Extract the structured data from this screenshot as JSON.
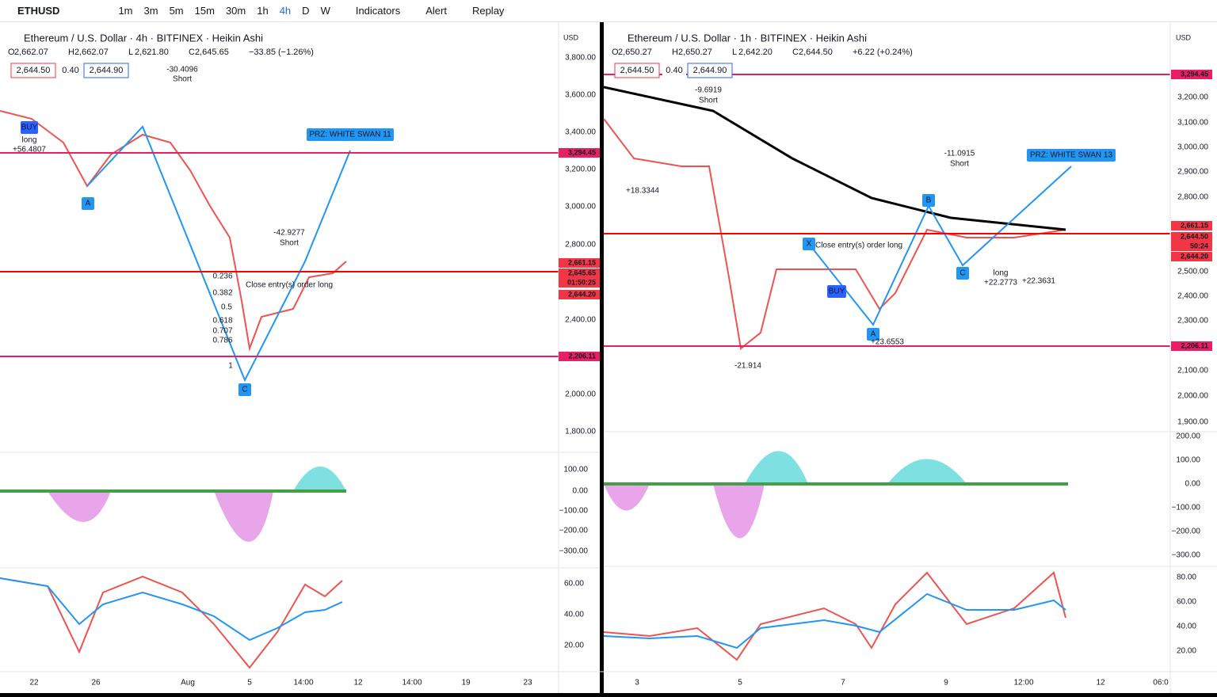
{
  "toolbar": {
    "symbol": "ETHUSD",
    "intervals": [
      "1m",
      "3m",
      "5m",
      "15m",
      "30m",
      "1h",
      "4h",
      "D",
      "W"
    ],
    "active_interval": "4h",
    "buttons": [
      "Indicators",
      "Alert",
      "Replay"
    ]
  },
  "panes": [
    {
      "title": "Ethereum / U.S. Dollar · 4h · BITFINEX · Heikin Ashi",
      "ohlc": [
        {
          "label": "O",
          "value": "2,662.07"
        },
        {
          "label": "H",
          "value": "2,662.07"
        },
        {
          "label": "L",
          "value": "2,621.80"
        },
        {
          "label": "C",
          "value": "2,645.65"
        }
      ],
      "change": "−33.85 (−1.26%)",
      "quote": [
        "2,644.50",
        "0.40",
        "2,644.90"
      ],
      "currency": "USD",
      "price_axis": [
        "3,800.00",
        "3,600.00",
        "3,400.00",
        "3,200.00",
        "3,000.00",
        "2,800.00",
        "2,400.00",
        "2,000.00",
        "1,800.00"
      ],
      "badges": [
        "3,294.45",
        "2,661.15",
        "2,645.65",
        "01:50:25",
        "2,644.20",
        "2,206.11"
      ],
      "oscillator_axis": [
        "100.00",
        "0.00",
        "−100.00",
        "−200.00",
        "−300.00"
      ],
      "rsi_axis": [
        "60.00",
        "40.00",
        "20.00"
      ],
      "time_axis": [
        "22",
        "26",
        "Aug",
        "5",
        "14:00",
        "12",
        "14:00",
        "19",
        "23"
      ],
      "annotations": [
        "PRZ: WHITE SWAN 11",
        "A",
        "C",
        "-42.9277",
        "Short",
        "Close entry(s) order long",
        "0.236",
        "0.382",
        "0.5",
        "0.618",
        "0.707",
        "0.786",
        "1",
        "BUY",
        "long",
        "+56.4807",
        "-30.4096",
        "Short"
      ]
    },
    {
      "title": "Ethereum / U.S. Dollar · 1h · BITFINEX · Heikin Ashi",
      "ohlc": [
        {
          "label": "O",
          "value": "2,650.27"
        },
        {
          "label": "H",
          "value": "2,650.27"
        },
        {
          "label": "L",
          "value": "2,642.20"
        },
        {
          "label": "C",
          "value": "2,644.50"
        }
      ],
      "change": "+6.22 (+0.24%)",
      "quote": [
        "2,644.50",
        "0.40",
        "2,644.90"
      ],
      "currency": "USD",
      "price_axis": [
        "3,200.00",
        "3,100.00",
        "3,000.00",
        "2,900.00",
        "2,800.00",
        "2,500.00",
        "2,400.00",
        "2,300.00",
        "2,100.00",
        "2,000.00",
        "1,900.00"
      ],
      "badges": [
        "3,294.45",
        "2,661.15",
        "2,644.50",
        "50:24",
        "2,644.20",
        "2,206.11"
      ],
      "oscillator_axis": [
        "200.00",
        "100.00",
        "0.00",
        "−100.00",
        "−200.00",
        "−300.00"
      ],
      "rsi_axis": [
        "80.00",
        "60.00",
        "40.00",
        "20.00"
      ],
      "time_axis": [
        "3",
        "5",
        "7",
        "9",
        "12:00",
        "12",
        "06:0"
      ],
      "annotations": [
        "PRZ: WHITE SWAN 13",
        "X",
        "A",
        "B",
        "C",
        "BUY",
        "-9.6919",
        "Short",
        "-11.0915",
        "Short",
        "Close entry(s) order long",
        "long",
        "+22.2773",
        "+22.3631",
        "-21.914",
        "+23.6553",
        "+18.3344"
      ]
    }
  ]
}
